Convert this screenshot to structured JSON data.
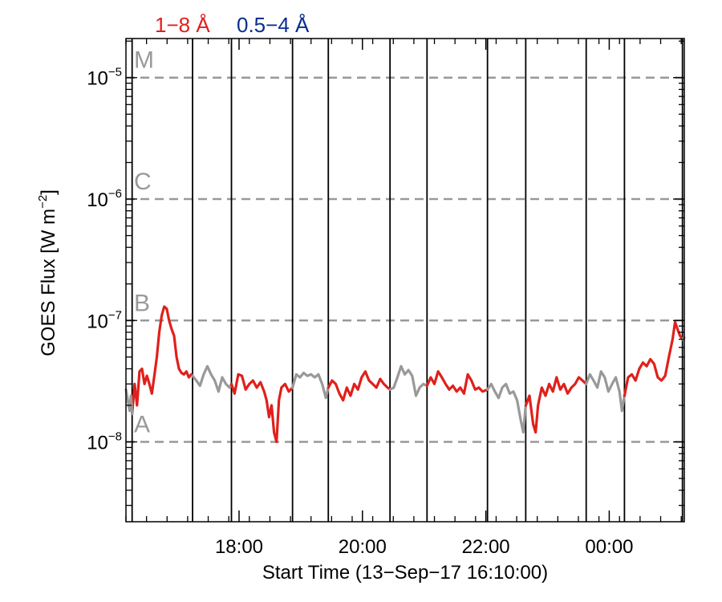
{
  "chart_data": {
    "type": "line",
    "legend": [
      {
        "label": "1−8 Å",
        "color": "#e0201b"
      },
      {
        "label": "0.5−4 Å",
        "color": "#0a2d8f"
      }
    ],
    "xlabel": "Start Time (13−Sep−17 16:10:00)",
    "ylabel_main": "GOES Flux [W m",
    "ylabel_sup": "−2",
    "ylabel_close": "]",
    "x_unit": "hours after 16:10",
    "xlim": [
      0,
      9.05
    ],
    "ylim": [
      2.2e-09,
      2.1e-05
    ],
    "y_scale": "log",
    "y_ticks": [
      {
        "base": "10",
        "exp": "−5",
        "value": 1e-05
      },
      {
        "base": "10",
        "exp": "−6",
        "value": 1e-06
      },
      {
        "base": "10",
        "exp": "−7",
        "value": 1e-07
      },
      {
        "base": "10",
        "exp": "−8",
        "value": 1e-08
      }
    ],
    "x_ticks": [
      {
        "label": "18:00",
        "value": 1.8333
      },
      {
        "label": "20:00",
        "value": 3.8333
      },
      {
        "label": "22:00",
        "value": 5.8333
      },
      {
        "label": "00:00",
        "value": 7.8333
      }
    ],
    "flare_classes": [
      {
        "label": "M",
        "value": 1e-05
      },
      {
        "label": "C",
        "value": 1e-06
      },
      {
        "label": "B",
        "value": 1e-07
      },
      {
        "label": "A",
        "value": 1e-08
      }
    ],
    "class_line_color": "#999999",
    "vertical_lines": [
      0.1,
      1.08,
      1.71,
      2.7,
      3.28,
      4.28,
      4.88,
      5.86,
      6.48,
      7.46,
      8.08,
      9.02
    ],
    "segments": [
      {
        "series": "1-8 Å",
        "color": "#e0201b",
        "points": [
          [
            0.1,
            1.7e-08
          ],
          [
            0.14,
            3e-08
          ],
          [
            0.18,
            2e-08
          ],
          [
            0.22,
            3.8e-08
          ],
          [
            0.26,
            4e-08
          ],
          [
            0.3,
            3e-08
          ],
          [
            0.34,
            3.5e-08
          ],
          [
            0.38,
            3e-08
          ],
          [
            0.42,
            2.5e-08
          ],
          [
            0.46,
            3.5e-08
          ],
          [
            0.5,
            5e-08
          ],
          [
            0.54,
            8e-08
          ],
          [
            0.58,
            1.1e-07
          ],
          [
            0.62,
            1.3e-07
          ],
          [
            0.66,
            1.25e-07
          ],
          [
            0.7,
            1e-07
          ],
          [
            0.74,
            8.5e-08
          ],
          [
            0.78,
            7.5e-08
          ],
          [
            0.82,
            5e-08
          ],
          [
            0.86,
            4e-08
          ],
          [
            0.9,
            3.7e-08
          ],
          [
            0.94,
            3.6e-08
          ]
        ]
      },
      {
        "series": "1-8 Å",
        "color": "#e0201b",
        "points": [
          [
            0.94,
            3.6e-08
          ],
          [
            0.98,
            3.8e-08
          ],
          [
            1.02,
            3.4e-08
          ],
          [
            1.06,
            3.6e-08
          ],
          [
            1.08,
            3.5e-08
          ]
        ]
      },
      {
        "series": "1-8 Å",
        "color": "#999999",
        "points": [
          [
            0.0,
            2.7e-08
          ],
          [
            0.03,
            2.2e-08
          ],
          [
            0.06,
            1.8e-08
          ],
          [
            0.08,
            2.4e-08
          ],
          [
            0.1,
            1.7e-08
          ]
        ]
      },
      {
        "series": "1-8 Å",
        "color": "#999999",
        "points": [
          [
            1.08,
            3.5e-08
          ],
          [
            1.14,
            3.2e-08
          ],
          [
            1.2,
            2.9e-08
          ],
          [
            1.26,
            3.6e-08
          ],
          [
            1.32,
            4.2e-08
          ],
          [
            1.38,
            3.6e-08
          ],
          [
            1.44,
            3.2e-08
          ],
          [
            1.5,
            2.6e-08
          ],
          [
            1.56,
            3.4e-08
          ],
          [
            1.62,
            3e-08
          ],
          [
            1.68,
            2.8e-08
          ],
          [
            1.71,
            3e-08
          ]
        ]
      },
      {
        "series": "1-8 Å",
        "color": "#e0201b",
        "points": [
          [
            1.71,
            3e-08
          ],
          [
            1.76,
            2.5e-08
          ],
          [
            1.82,
            3.6e-08
          ],
          [
            1.88,
            3.5e-08
          ],
          [
            1.94,
            2.7e-08
          ],
          [
            2.0,
            3e-08
          ],
          [
            2.06,
            3.2e-08
          ],
          [
            2.12,
            2.8e-08
          ],
          [
            2.18,
            3.1e-08
          ],
          [
            2.24,
            2.6e-08
          ],
          [
            2.28,
            2.2e-08
          ],
          [
            2.32,
            1.6e-08
          ],
          [
            2.36,
            2e-08
          ],
          [
            2.4,
            1.2e-08
          ],
          [
            2.44,
            1e-08
          ],
          [
            2.48,
            2.2e-08
          ],
          [
            2.52,
            2.8e-08
          ],
          [
            2.58,
            3e-08
          ],
          [
            2.64,
            2.6e-08
          ],
          [
            2.7,
            2.8e-08
          ]
        ]
      },
      {
        "series": "1-8 Å",
        "color": "#999999",
        "points": [
          [
            2.7,
            2.8e-08
          ],
          [
            2.76,
            3.6e-08
          ],
          [
            2.82,
            3.4e-08
          ],
          [
            2.88,
            3.7e-08
          ],
          [
            2.94,
            3.5e-08
          ],
          [
            3.0,
            3.6e-08
          ],
          [
            3.06,
            3.4e-08
          ],
          [
            3.12,
            3.6e-08
          ],
          [
            3.18,
            3e-08
          ],
          [
            3.24,
            2.3e-08
          ],
          [
            3.28,
            2.8e-08
          ]
        ]
      },
      {
        "series": "1-8 Å",
        "color": "#e0201b",
        "points": [
          [
            3.28,
            2.8e-08
          ],
          [
            3.34,
            3.2e-08
          ],
          [
            3.4,
            3e-08
          ],
          [
            3.46,
            2.5e-08
          ],
          [
            3.52,
            2.2e-08
          ],
          [
            3.58,
            2.8e-08
          ],
          [
            3.64,
            2.4e-08
          ],
          [
            3.7,
            3e-08
          ],
          [
            3.76,
            2.7e-08
          ],
          [
            3.82,
            3.4e-08
          ],
          [
            3.88,
            3.8e-08
          ],
          [
            3.94,
            3.2e-08
          ],
          [
            4.0,
            3e-08
          ],
          [
            4.06,
            2.8e-08
          ],
          [
            4.12,
            3.3e-08
          ],
          [
            4.18,
            3e-08
          ],
          [
            4.24,
            2.8e-08
          ],
          [
            4.28,
            2.7e-08
          ]
        ]
      },
      {
        "series": "1-8 Å",
        "color": "#999999",
        "points": [
          [
            4.28,
            2.7e-08
          ],
          [
            4.34,
            2.8e-08
          ],
          [
            4.4,
            3.4e-08
          ],
          [
            4.46,
            4.2e-08
          ],
          [
            4.52,
            3.6e-08
          ],
          [
            4.58,
            3.9e-08
          ],
          [
            4.64,
            3.5e-08
          ],
          [
            4.7,
            2.4e-08
          ],
          [
            4.76,
            2.8e-08
          ],
          [
            4.82,
            3e-08
          ],
          [
            4.88,
            2.9e-08
          ]
        ]
      },
      {
        "series": "1-8 Å",
        "color": "#e0201b",
        "points": [
          [
            4.88,
            2.9e-08
          ],
          [
            4.94,
            3.4e-08
          ],
          [
            5.0,
            3e-08
          ],
          [
            5.06,
            3.8e-08
          ],
          [
            5.12,
            3.4e-08
          ],
          [
            5.18,
            3e-08
          ],
          [
            5.24,
            2.7e-08
          ],
          [
            5.3,
            2.9e-08
          ],
          [
            5.36,
            2.6e-08
          ],
          [
            5.42,
            2.8e-08
          ],
          [
            5.48,
            2.5e-08
          ],
          [
            5.54,
            3.6e-08
          ],
          [
            5.6,
            3.2e-08
          ],
          [
            5.66,
            2.7e-08
          ],
          [
            5.72,
            2.8e-08
          ],
          [
            5.78,
            2.6e-08
          ],
          [
            5.86,
            2.7e-08
          ]
        ]
      },
      {
        "series": "1-8 Å",
        "color": "#999999",
        "points": [
          [
            5.86,
            2.7e-08
          ],
          [
            5.92,
            3e-08
          ],
          [
            5.98,
            2.6e-08
          ],
          [
            6.04,
            2.3e-08
          ],
          [
            6.1,
            2.8e-08
          ],
          [
            6.16,
            3e-08
          ],
          [
            6.22,
            2.5e-08
          ],
          [
            6.28,
            2.6e-08
          ],
          [
            6.34,
            2.2e-08
          ],
          [
            6.4,
            1.5e-08
          ],
          [
            6.44,
            1.2e-08
          ],
          [
            6.48,
            2e-08
          ]
        ]
      },
      {
        "series": "1-8 Å",
        "color": "#e0201b",
        "points": [
          [
            6.48,
            2e-08
          ],
          [
            6.54,
            2.4e-08
          ],
          [
            6.6,
            1.4e-08
          ],
          [
            6.64,
            1.2e-08
          ],
          [
            6.68,
            2e-08
          ],
          [
            6.74,
            2.8e-08
          ],
          [
            6.8,
            2.4e-08
          ],
          [
            6.86,
            3e-08
          ],
          [
            6.92,
            2.6e-08
          ],
          [
            6.98,
            3.4e-08
          ],
          [
            7.04,
            2.7e-08
          ],
          [
            7.1,
            3e-08
          ],
          [
            7.16,
            2.5e-08
          ],
          [
            7.22,
            2.8e-08
          ],
          [
            7.28,
            3e-08
          ],
          [
            7.34,
            3.4e-08
          ],
          [
            7.4,
            3.2e-08
          ],
          [
            7.46,
            3e-08
          ]
        ]
      },
      {
        "series": "1-8 Å",
        "color": "#999999",
        "points": [
          [
            7.46,
            3e-08
          ],
          [
            7.52,
            3.6e-08
          ],
          [
            7.58,
            3.2e-08
          ],
          [
            7.64,
            2.8e-08
          ],
          [
            7.7,
            3.8e-08
          ],
          [
            7.76,
            3.4e-08
          ],
          [
            7.82,
            2.6e-08
          ],
          [
            7.88,
            3e-08
          ],
          [
            7.94,
            3.4e-08
          ],
          [
            8.0,
            2.6e-08
          ],
          [
            8.04,
            1.8e-08
          ],
          [
            8.08,
            2.4e-08
          ]
        ]
      },
      {
        "series": "1-8 Å",
        "color": "#e0201b",
        "points": [
          [
            8.08,
            2.4e-08
          ],
          [
            8.14,
            3.4e-08
          ],
          [
            8.2,
            3.6e-08
          ],
          [
            8.26,
            3.2e-08
          ],
          [
            8.32,
            4e-08
          ],
          [
            8.38,
            4.5e-08
          ],
          [
            8.44,
            4.2e-08
          ],
          [
            8.5,
            4.8e-08
          ],
          [
            8.56,
            4.4e-08
          ],
          [
            8.62,
            3.4e-08
          ],
          [
            8.68,
            3.2e-08
          ],
          [
            8.74,
            3.5e-08
          ],
          [
            8.8,
            5e-08
          ],
          [
            8.86,
            7e-08
          ],
          [
            8.9,
            9.7e-08
          ],
          [
            8.94,
            8.5e-08
          ],
          [
            8.98,
            7.5e-08
          ],
          [
            9.02,
            7e-08
          ]
        ]
      },
      {
        "series": "1-8 Å",
        "color": "#999999",
        "points": [
          [
            9.02,
            7e-08
          ],
          [
            9.05,
            7.2e-08
          ]
        ]
      }
    ]
  }
}
